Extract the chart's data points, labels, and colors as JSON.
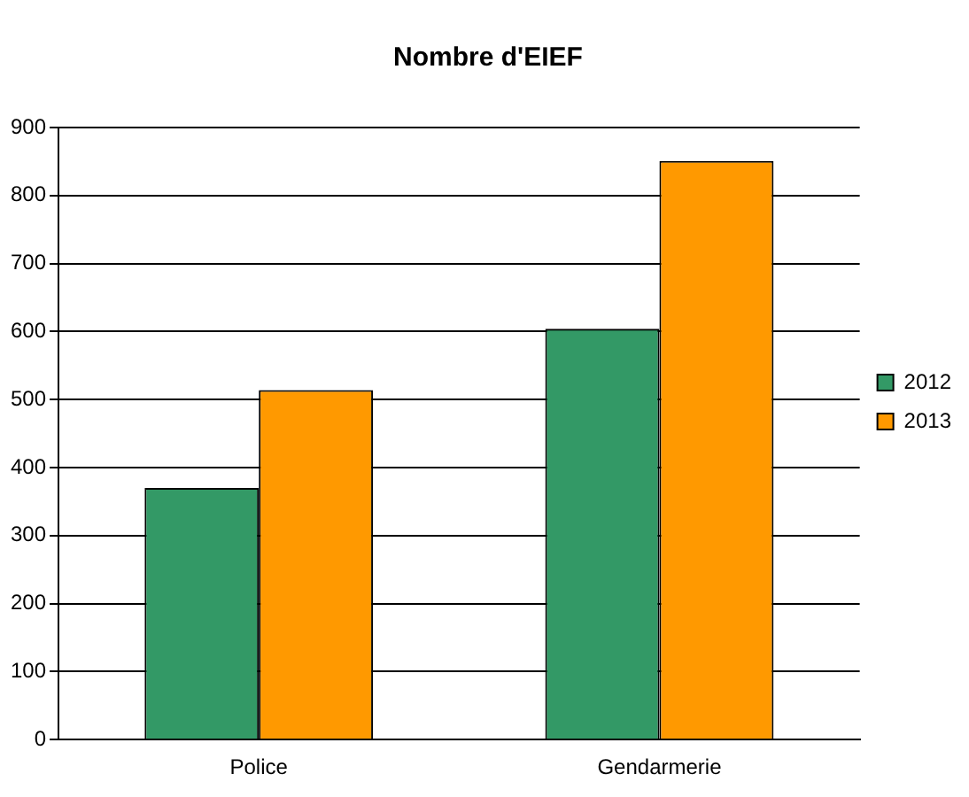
{
  "chart_data": {
    "type": "bar",
    "title": "Nombre d'EIEF",
    "categories": [
      "Police",
      "Gendarmerie"
    ],
    "series": [
      {
        "name": "2012",
        "color": "#339966",
        "values": [
          370,
          604
        ]
      },
      {
        "name": "2013",
        "color": "#ff9900",
        "values": [
          514,
          851
        ]
      }
    ],
    "ylim": [
      0,
      900
    ],
    "yticks": [
      0,
      100,
      200,
      300,
      400,
      500,
      600,
      700,
      800,
      900
    ],
    "grid": "y",
    "legend": "right"
  }
}
